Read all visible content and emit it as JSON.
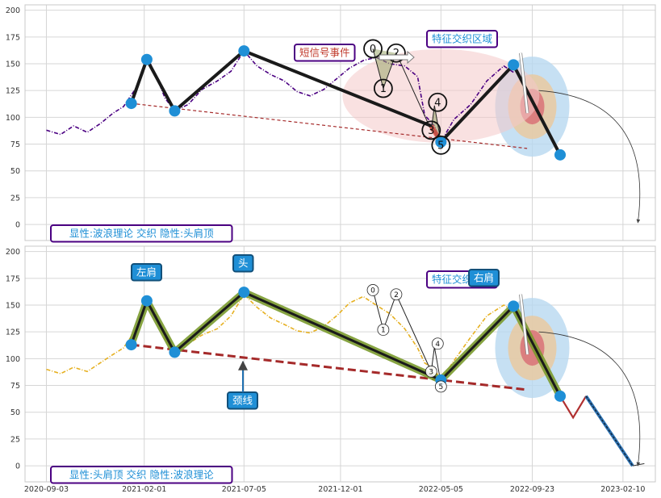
{
  "chart_data": [
    {
      "type": "line",
      "panel": "top",
      "x_ticks": [
        "2020-09-03",
        "2021-02-01",
        "2021-07-05",
        "2021-12-01",
        "2022-05-05",
        "2022-09-23",
        "2023-02-10"
      ],
      "x_range": [
        "2020-08-01",
        "2023-04-01"
      ],
      "ylim": [
        -15,
        205
      ],
      "y_ticks": [
        0,
        25,
        50,
        75,
        100,
        125,
        150,
        175,
        200
      ],
      "price_color": "#4b0082",
      "price_series": [
        [
          "2020-09-03",
          88
        ],
        [
          "2020-09-25",
          84
        ],
        [
          "2020-10-15",
          92
        ],
        [
          "2020-11-05",
          86
        ],
        [
          "2020-11-25",
          94
        ],
        [
          "2020-12-15",
          104
        ],
        [
          "2020-12-31",
          110
        ],
        [
          "2021-01-20",
          128
        ],
        [
          "2021-02-05",
          157
        ],
        [
          "2021-02-20",
          138
        ],
        [
          "2021-03-05",
          118
        ],
        [
          "2021-03-20",
          106
        ],
        [
          "2021-04-10",
          112
        ],
        [
          "2021-05-01",
          126
        ],
        [
          "2021-05-25",
          134
        ],
        [
          "2021-06-15",
          143
        ],
        [
          "2021-07-05",
          162
        ],
        [
          "2021-07-25",
          148
        ],
        [
          "2021-08-15",
          140
        ],
        [
          "2021-09-05",
          134
        ],
        [
          "2021-09-25",
          124
        ],
        [
          "2021-10-15",
          120
        ],
        [
          "2021-11-05",
          126
        ],
        [
          "2021-11-25",
          136
        ],
        [
          "2021-12-15",
          146
        ],
        [
          "2022-01-05",
          153
        ],
        [
          "2022-01-25",
          156
        ],
        [
          "2022-02-15",
          150
        ],
        [
          "2022-03-10",
          148
        ],
        [
          "2022-03-30",
          138
        ],
        [
          "2022-04-10",
          102
        ],
        [
          "2022-04-25",
          92
        ],
        [
          "2022-05-05",
          77
        ],
        [
          "2022-05-25",
          98
        ],
        [
          "2022-06-20",
          112
        ],
        [
          "2022-07-15",
          134
        ],
        [
          "2022-08-10",
          148
        ],
        [
          "2022-08-25",
          142
        ]
      ],
      "wave_line": {
        "color": "#1a1a1a",
        "points": [
          [
            "2021-01-12",
            113
          ],
          [
            "2021-02-05",
            154
          ],
          [
            "2021-03-20",
            106
          ],
          [
            "2021-07-05",
            162
          ],
          [
            "2022-04-20",
            92
          ],
          [
            "2022-05-05",
            77
          ],
          [
            "2022-08-25",
            149
          ],
          [
            "2022-11-05",
            65
          ]
        ]
      },
      "neckline": {
        "color": "#a52a2a",
        "points": [
          [
            "2021-01-12",
            113
          ],
          [
            "2022-09-15",
            71
          ]
        ]
      },
      "nodes": [
        [
          "2021-01-12",
          113
        ],
        [
          "2021-02-05",
          154
        ],
        [
          "2021-03-20",
          106
        ],
        [
          "2021-07-05",
          162
        ],
        [
          "2022-05-05",
          77
        ],
        [
          "2022-08-25",
          149
        ],
        [
          "2022-11-05",
          65
        ]
      ],
      "short_wave": [
        [
          "2022-01-20",
          164
        ],
        [
          "2022-02-05",
          127
        ],
        [
          "2022-02-25",
          160
        ],
        [
          "2022-04-20",
          88
        ],
        [
          "2022-04-25",
          111
        ],
        [
          "2022-05-05",
          77
        ]
      ],
      "circle_labels": [
        {
          "t": "0",
          "x": "2022-01-20",
          "y": 164
        },
        {
          "t": "1",
          "x": "2022-02-05",
          "y": 127
        },
        {
          "t": "2",
          "x": "2022-02-25",
          "y": 160
        },
        {
          "t": "3",
          "x": "2022-04-20",
          "y": 88
        },
        {
          "t": "4",
          "x": "2022-04-30",
          "y": 114
        },
        {
          "t": "5",
          "x": "2022-05-05",
          "y": 74
        }
      ],
      "annotations": {
        "box1": "显性:波浪理论 交织 隐性:头肩顶",
        "signal": "短信号事件",
        "feature": "特征交织区域"
      },
      "colors": {
        "wave_fill": "#9aa86b",
        "rise_red": "#e05a4f",
        "ellipse": "#f4c8c8",
        "target_outer": "#b8d8f0",
        "target_mid": "#e9c9a0",
        "target_inner": "#d9777a",
        "node": "#1f8fd6",
        "label_border": "#4b0082",
        "label_text": "#1f8fd6"
      }
    },
    {
      "type": "line",
      "panel": "bottom",
      "x_ticks": [
        "2020-09-03",
        "2021-02-01",
        "2021-07-05",
        "2021-12-01",
        "2022-05-05",
        "2022-09-23",
        "2023-02-10"
      ],
      "x_range": [
        "2020-08-01",
        "2023-04-01"
      ],
      "ylim": [
        -15,
        205
      ],
      "y_ticks": [
        0,
        25,
        50,
        75,
        100,
        125,
        150,
        175,
        200
      ],
      "price_color": "#e6b020",
      "price_series": [
        [
          "2020-09-03",
          90
        ],
        [
          "2020-09-25",
          86
        ],
        [
          "2020-10-15",
          92
        ],
        [
          "2020-11-05",
          88
        ],
        [
          "2020-11-25",
          96
        ],
        [
          "2020-12-15",
          104
        ],
        [
          "2020-12-31",
          110
        ],
        [
          "2021-01-20",
          128
        ],
        [
          "2021-02-05",
          157
        ],
        [
          "2021-02-20",
          140
        ],
        [
          "2021-03-05",
          118
        ],
        [
          "2021-03-20",
          106
        ],
        [
          "2021-04-10",
          114
        ],
        [
          "2021-05-01",
          122
        ],
        [
          "2021-05-25",
          128
        ],
        [
          "2021-06-15",
          140
        ],
        [
          "2021-07-05",
          160
        ],
        [
          "2021-07-25",
          148
        ],
        [
          "2021-08-15",
          138
        ],
        [
          "2021-09-05",
          132
        ],
        [
          "2021-09-25",
          126
        ],
        [
          "2021-10-15",
          124
        ],
        [
          "2021-11-05",
          130
        ],
        [
          "2021-11-25",
          140
        ],
        [
          "2021-12-15",
          152
        ],
        [
          "2022-01-05",
          158
        ],
        [
          "2022-01-25",
          150
        ],
        [
          "2022-02-15",
          142
        ],
        [
          "2022-03-10",
          128
        ],
        [
          "2022-03-30",
          110
        ],
        [
          "2022-04-10",
          96
        ],
        [
          "2022-04-25",
          90
        ],
        [
          "2022-05-05",
          80
        ],
        [
          "2022-05-25",
          98
        ],
        [
          "2022-06-20",
          120
        ],
        [
          "2022-07-15",
          140
        ],
        [
          "2022-08-10",
          150
        ],
        [
          "2022-08-25",
          145
        ]
      ],
      "hs_line": {
        "color": "#1a1a1a",
        "band": "#7a9a2e",
        "points": [
          [
            "2021-01-12",
            113
          ],
          [
            "2021-02-05",
            154
          ],
          [
            "2021-03-20",
            106
          ],
          [
            "2021-07-05",
            162
          ],
          [
            "2022-05-05",
            80
          ],
          [
            "2022-08-25",
            149
          ],
          [
            "2022-11-05",
            65
          ]
        ]
      },
      "neckline": {
        "color": "#a52a2a",
        "points": [
          [
            "2021-01-12",
            113
          ],
          [
            "2022-09-15",
            71
          ]
        ]
      },
      "nodes": [
        [
          "2021-01-12",
          113
        ],
        [
          "2021-02-05",
          154
        ],
        [
          "2021-03-20",
          106
        ],
        [
          "2021-07-05",
          162
        ],
        [
          "2022-05-05",
          80
        ],
        [
          "2022-08-25",
          149
        ],
        [
          "2022-11-05",
          65
        ]
      ],
      "short_wave": [
        [
          "2022-01-20",
          164
        ],
        [
          "2022-02-05",
          127
        ],
        [
          "2022-02-25",
          160
        ],
        [
          "2022-04-20",
          88
        ],
        [
          "2022-04-25",
          111
        ],
        [
          "2022-05-05",
          77
        ]
      ],
      "circle_labels": [
        {
          "t": "0",
          "x": "2022-01-20",
          "y": 164
        },
        {
          "t": "1",
          "x": "2022-02-05",
          "y": 127
        },
        {
          "t": "2",
          "x": "2022-02-25",
          "y": 160
        },
        {
          "t": "3",
          "x": "2022-04-20",
          "y": 88
        },
        {
          "t": "4",
          "x": "2022-04-30",
          "y": 114
        },
        {
          "t": "5",
          "x": "2022-05-05",
          "y": 74
        }
      ],
      "projection": {
        "red": [
          [
            "2022-11-05",
            65
          ],
          [
            "2022-11-25",
            45
          ],
          [
            "2022-12-15",
            65
          ]
        ],
        "blue": [
          [
            "2022-12-15",
            65
          ],
          [
            "2023-02-25",
            0
          ]
        ],
        "flag": [
          [
            "2023-02-25",
            0
          ],
          [
            "2023-03-15",
            2
          ]
        ]
      },
      "annotations": {
        "box1": "显性:头肩顶 交织 隐性:波浪理论",
        "left_shoulder": "左肩",
        "head": "头",
        "right_shoulder": "右肩",
        "neckline": "颈线",
        "feature": "特征交织区域"
      },
      "colors": {
        "rise_red": "#e05a4f",
        "target_outer": "#b8d8f0",
        "target_mid": "#e9c9a0",
        "target_inner": "#d9777a",
        "node": "#1f8fd6",
        "label_border": "#4b0082",
        "label_text": "#1f8fd6",
        "proj_red": "#b03030",
        "proj_blue": "#2a6fb0"
      }
    }
  ]
}
